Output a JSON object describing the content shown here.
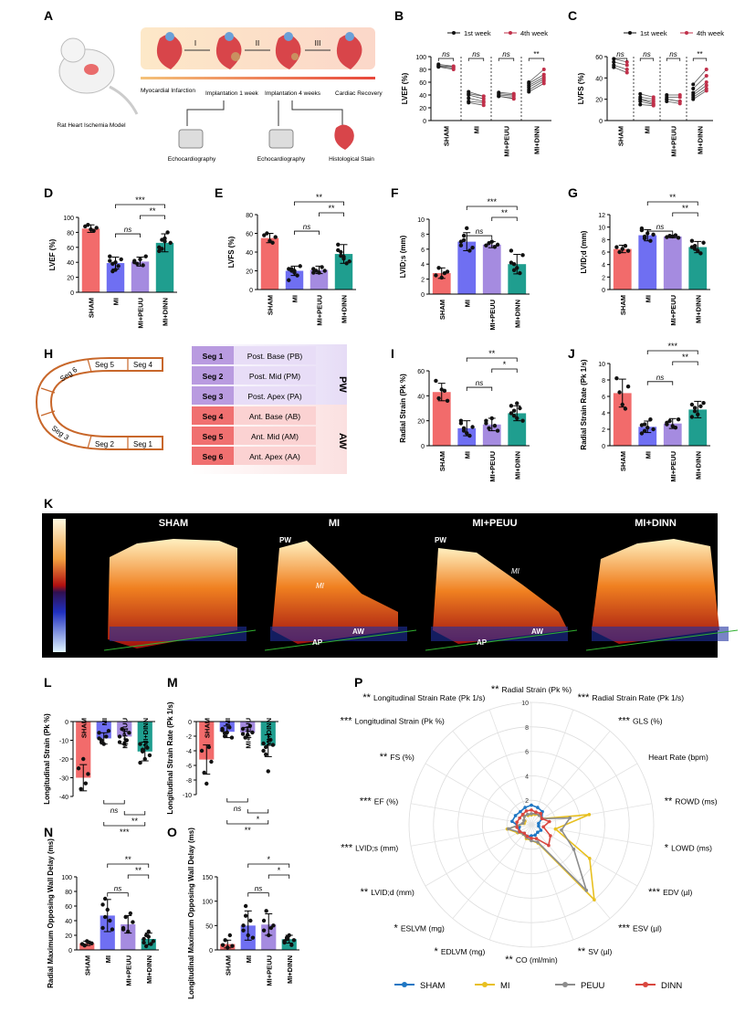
{
  "colors": {
    "sham": "#f26b6b",
    "mi": "#6f6ff2",
    "peuu": "#a58be0",
    "dinn": "#1f9e8f",
    "sham_line": "#1f77c4",
    "mi_line": "#e8c020",
    "peuu_line": "#8c8c8c",
    "dinn_line": "#d9473f"
  },
  "panel_letters": [
    "A",
    "B",
    "C",
    "D",
    "E",
    "F",
    "G",
    "H",
    "I",
    "J",
    "K",
    "L",
    "M",
    "N",
    "O",
    "P"
  ],
  "panel_a": {
    "steps": [
      "I",
      "II",
      "III"
    ],
    "timeline": [
      "Myocardial Infarction",
      "Implantation 1 week",
      "Implantation 4 weeks",
      "Cardiac Recovery"
    ],
    "rat_label": "Rat Heart Ischemia Model",
    "echo1": "Echocardiography",
    "echo2": "Echocardiography",
    "histo": "Histological Stain"
  },
  "chart_data": [
    {
      "id": "B",
      "type": "line",
      "ylabel": "LVEF (%)",
      "ylim": [
        0,
        100
      ],
      "yticks": [
        0,
        20,
        40,
        60,
        80,
        100
      ],
      "categories": [
        "SHAM",
        "MI",
        "MI+PEUU",
        "MI+DINN"
      ],
      "legend": [
        "1st week",
        "4th week"
      ],
      "sig": [
        "ns",
        "ns",
        "ns",
        "**"
      ],
      "series": [
        {
          "name": "1st week",
          "values": [
            [
              88,
              86,
              84,
              85
            ],
            [
              42,
              40,
              35,
              30,
              28,
              45
            ],
            [
              42,
              38,
              40,
              44,
              38
            ],
            [
              58,
              55,
              52,
              48,
              45,
              60
            ]
          ]
        },
        {
          "name": "4th week",
          "values": [
            [
              85,
              84,
              80,
              82
            ],
            [
              38,
              34,
              30,
              28,
              24,
              38
            ],
            [
              40,
              34,
              38,
              42,
              35
            ],
            [
              72,
              68,
              65,
              62,
              58,
              80
            ]
          ]
        }
      ]
    },
    {
      "id": "C",
      "type": "line",
      "ylabel": "LVFS (%)",
      "ylim": [
        0,
        60
      ],
      "yticks": [
        0,
        20,
        40,
        60
      ],
      "categories": [
        "SHAM",
        "MI",
        "MI+PEUU",
        "MI+DINN"
      ],
      "legend": [
        "1st week",
        "4th week"
      ],
      "sig": [
        "ns",
        "ns",
        "ns",
        "**"
      ],
      "series": [
        {
          "name": "1st week",
          "values": [
            [
              58,
              55,
              52,
              50
            ],
            [
              22,
              20,
              18,
              15,
              25,
              20
            ],
            [
              22,
              20,
              18,
              24,
              20
            ],
            [
              30,
              26,
              24,
              20,
              22,
              34
            ]
          ]
        },
        {
          "name": "4th week",
          "values": [
            [
              55,
              52,
              48,
              45
            ],
            [
              20,
              18,
              15,
              14,
              22,
              16
            ],
            [
              22,
              18,
              16,
              24,
              18
            ],
            [
              42,
              36,
              33,
              28,
              30,
              48
            ]
          ]
        }
      ]
    },
    {
      "id": "D",
      "type": "bar",
      "ylabel": "LVEF (%)",
      "ylim": [
        0,
        100
      ],
      "yticks": [
        0,
        20,
        40,
        60,
        80,
        100
      ],
      "categories": [
        "SHAM",
        "MI",
        "MI+PEUU",
        "MI+DINN"
      ],
      "values": [
        85,
        39,
        41,
        66
      ],
      "errors": [
        5,
        8,
        6,
        12
      ],
      "points": [
        [
          88,
          90,
          84,
          82,
          86
        ],
        [
          42,
          38,
          30,
          35,
          44,
          48,
          28,
          40
        ],
        [
          40,
          38,
          44,
          36,
          48,
          42
        ],
        [
          60,
          58,
          72,
          80,
          66,
          55,
          70,
          68
        ]
      ],
      "sig": [
        {
          "a": 1,
          "b": 3,
          "t": "***"
        },
        {
          "a": 2,
          "b": 3,
          "t": "**"
        },
        {
          "a": 1,
          "b": 2,
          "t": "ns"
        }
      ]
    },
    {
      "id": "E",
      "type": "bar",
      "ylabel": "LVFS (%)",
      "ylim": [
        0,
        80
      ],
      "yticks": [
        0,
        20,
        40,
        60,
        80
      ],
      "categories": [
        "SHAM",
        "MI",
        "MI+PEUU",
        "MI+DINN"
      ],
      "values": [
        55,
        20,
        21,
        38
      ],
      "errors": [
        5,
        5,
        4,
        10
      ],
      "points": [
        [
          58,
          60,
          52,
          50,
          56
        ],
        [
          22,
          20,
          18,
          15,
          25,
          10,
          22,
          20
        ],
        [
          22,
          20,
          18,
          24,
          20,
          18
        ],
        [
          42,
          36,
          33,
          28,
          30,
          48,
          40,
          35
        ]
      ],
      "sig": [
        {
          "a": 1,
          "b": 3,
          "t": "**"
        },
        {
          "a": 2,
          "b": 3,
          "t": "**"
        },
        {
          "a": 1,
          "b": 2,
          "t": "ns"
        }
      ]
    },
    {
      "id": "F",
      "type": "bar",
      "ylabel": "LVID;s (mm)",
      "ylim": [
        0,
        10
      ],
      "yticks": [
        0,
        2,
        4,
        6,
        8,
        10
      ],
      "categories": [
        "SHAM",
        "MI",
        "MI+PEUU",
        "MI+DINN"
      ],
      "values": [
        2.8,
        7.0,
        6.6,
        4.0
      ],
      "errors": [
        0.7,
        1.2,
        0.4,
        1.3
      ],
      "points": [
        [
          2.5,
          3.5,
          2.2,
          2.8,
          3.0
        ],
        [
          6.5,
          7.8,
          8.8,
          5.8,
          6.2,
          7.0,
          7.2
        ],
        [
          6.5,
          6.8,
          7.0,
          6.3,
          6.6
        ],
        [
          5.8,
          4.0,
          3.5,
          2.8,
          5.2,
          4.2,
          3.2
        ]
      ],
      "sig": [
        {
          "a": 1,
          "b": 3,
          "t": "***"
        },
        {
          "a": 2,
          "b": 3,
          "t": "**"
        },
        {
          "a": 1,
          "b": 2,
          "t": "ns"
        }
      ]
    },
    {
      "id": "G",
      "type": "bar",
      "ylabel": "LVID;d (mm)",
      "ylim": [
        0,
        12
      ],
      "yticks": [
        0,
        2,
        4,
        6,
        8,
        10,
        12
      ],
      "categories": [
        "SHAM",
        "MI",
        "MI+PEUU",
        "MI+DINN"
      ],
      "values": [
        6.5,
        8.7,
        8.5,
        6.8
      ],
      "errors": [
        0.6,
        0.9,
        0.2,
        0.9
      ],
      "points": [
        [
          6.8,
          6.0,
          6.5,
          7.0,
          6.2
        ],
        [
          9.5,
          8.2,
          9.0,
          7.8,
          8.8,
          9.8,
          8.5
        ],
        [
          8.4,
          8.6,
          8.5,
          8.7,
          8.3
        ],
        [
          7.8,
          7.0,
          6.2,
          5.8,
          7.5,
          6.8,
          6.5
        ]
      ],
      "sig": [
        {
          "a": 1,
          "b": 3,
          "t": "**"
        },
        {
          "a": 2,
          "b": 3,
          "t": "**"
        },
        {
          "a": 1,
          "b": 2,
          "t": "ns"
        }
      ]
    },
    {
      "id": "I",
      "type": "bar",
      "ylabel": "Radial Strain (Pk %)",
      "ylim": [
        0,
        60
      ],
      "yticks": [
        0,
        20,
        40,
        60
      ],
      "categories": [
        "SHAM",
        "MI",
        "MI+PEUU",
        "MI+DINN"
      ],
      "values": [
        43,
        14,
        17,
        26
      ],
      "errors": [
        7,
        6,
        5,
        6
      ],
      "points": [
        [
          52,
          38,
          45,
          44,
          36
        ],
        [
          20,
          12,
          10,
          8,
          15,
          18,
          14
        ],
        [
          18,
          14,
          22,
          16,
          12,
          20
        ],
        [
          32,
          28,
          22,
          30,
          20,
          26,
          24,
          34
        ]
      ],
      "sig": [
        {
          "a": 1,
          "b": 3,
          "t": "**"
        },
        {
          "a": 2,
          "b": 3,
          "t": "*"
        },
        {
          "a": 1,
          "b": 2,
          "t": "ns"
        }
      ]
    },
    {
      "id": "J",
      "type": "bar",
      "ylabel": "Radial Strain Rate (Pk 1/s)",
      "ylim": [
        0,
        10
      ],
      "yticks": [
        0,
        2,
        4,
        6,
        8,
        10
      ],
      "categories": [
        "SHAM",
        "MI",
        "MI+PEUU",
        "MI+DINN"
      ],
      "values": [
        6.4,
        2.3,
        2.7,
        4.4
      ],
      "errors": [
        1.7,
        0.7,
        0.6,
        1.0
      ],
      "points": [
        [
          8.2,
          6.5,
          5.0,
          4.5,
          7.2
        ],
        [
          2.5,
          1.8,
          2.2,
          3.2,
          2.0,
          1.5,
          2.6
        ],
        [
          2.8,
          3.0,
          2.4,
          2.2,
          3.2,
          2.6
        ],
        [
          5.0,
          4.2,
          3.8,
          4.8,
          5.2,
          3.5,
          4.6
        ]
      ],
      "sig": [
        {
          "a": 1,
          "b": 3,
          "t": "***"
        },
        {
          "a": 2,
          "b": 3,
          "t": "**"
        },
        {
          "a": 1,
          "b": 2,
          "t": "ns"
        }
      ]
    },
    {
      "id": "L",
      "type": "bar",
      "ylabel": "Longitudinal Strain (Pk %)",
      "ylim": [
        -40,
        0
      ],
      "yticks": [
        0,
        -10,
        -20,
        -30,
        -40
      ],
      "categories": [
        "SHAM",
        "MI",
        "MI+PEUU",
        "MI+DINN"
      ],
      "values": [
        -30,
        -9,
        -8,
        -16
      ],
      "errors": [
        7,
        3,
        4,
        5
      ],
      "points": [
        [
          -25,
          -36,
          -20,
          -33,
          -28
        ],
        [
          -6,
          -10,
          -12,
          -8,
          -5,
          -9,
          -11
        ],
        [
          -8,
          -4,
          -12,
          -10,
          -6,
          -11
        ],
        [
          -12,
          -16,
          -20,
          -14,
          -18,
          -22,
          -15
        ]
      ],
      "sig": [
        {
          "a": 1,
          "b": 3,
          "t": "***"
        },
        {
          "a": 2,
          "b": 3,
          "t": "**"
        },
        {
          "a": 1,
          "b": 2,
          "t": "ns"
        }
      ]
    },
    {
      "id": "M",
      "type": "bar",
      "ylabel": "Longitudinal Strain Rate (Pk 1/s)",
      "ylim": [
        -10,
        0
      ],
      "yticks": [
        0,
        -2,
        -4,
        -6,
        -8,
        -10
      ],
      "categories": [
        "SHAM",
        "MI",
        "MI+PEUU",
        "MI+DINN"
      ],
      "values": [
        -5.2,
        -1.4,
        -1.5,
        -3.3
      ],
      "errors": [
        2,
        0.8,
        0.7,
        1.5
      ],
      "points": [
        [
          -4,
          -7,
          -8.5,
          -3.5,
          -5.5
        ],
        [
          -1,
          -2,
          -1.5,
          -0.8,
          -2.2,
          -1.2,
          -1.6
        ],
        [
          -1,
          -2.2,
          -1.8,
          -0.6,
          -1.5,
          -1.7
        ],
        [
          -3,
          -4.5,
          -6.8,
          -2.5,
          -3.2,
          -4,
          -3.5
        ]
      ],
      "sig": [
        {
          "a": 1,
          "b": 3,
          "t": "**"
        },
        {
          "a": 2,
          "b": 3,
          "t": "*"
        },
        {
          "a": 1,
          "b": 2,
          "t": "ns"
        }
      ]
    },
    {
      "id": "N",
      "type": "bar",
      "ylabel": "Radial Maximum Opposing Wall Delay (ms)",
      "ylim": [
        0,
        100
      ],
      "yticks": [
        0,
        20,
        40,
        60,
        80,
        100
      ],
      "categories": [
        "SHAM",
        "MI",
        "MI+PEUU",
        "MI+DINN"
      ],
      "values": [
        9,
        47,
        35,
        15
      ],
      "errors": [
        3,
        22,
        12,
        8
      ],
      "points": [
        [
          8,
          6,
          12,
          10,
          9
        ],
        [
          30,
          70,
          55,
          40,
          28,
          62,
          45
        ],
        [
          30,
          45,
          25,
          50,
          38,
          28
        ],
        [
          10,
          20,
          25,
          8,
          12,
          15,
          5,
          18
        ]
      ],
      "sig": [
        {
          "a": 1,
          "b": 3,
          "t": "**"
        },
        {
          "a": 2,
          "b": 3,
          "t": "**"
        },
        {
          "a": 1,
          "b": 2,
          "t": "ns"
        }
      ]
    },
    {
      "id": "O",
      "type": "bar",
      "ylabel": "Longitudinal Maximum Opposing Wall Delay (ms)",
      "ylim": [
        0,
        150
      ],
      "yticks": [
        0,
        50,
        100,
        150
      ],
      "categories": [
        "SHAM",
        "MI",
        "MI+PEUU",
        "MI+DINN"
      ],
      "values": [
        12,
        50,
        52,
        22
      ],
      "errors": [
        8,
        30,
        22,
        8
      ],
      "points": [
        [
          10,
          20,
          5,
          30,
          8
        ],
        [
          40,
          90,
          30,
          60,
          25,
          50,
          70
        ],
        [
          60,
          80,
          30,
          45,
          50,
          40
        ],
        [
          15,
          25,
          30,
          10,
          20,
          18,
          22
        ]
      ],
      "sig": [
        {
          "a": 1,
          "b": 3,
          "t": "*"
        },
        {
          "a": 2,
          "b": 3,
          "t": "*"
        },
        {
          "a": 1,
          "b": 2,
          "t": "ns"
        }
      ]
    }
  ],
  "panel_h": {
    "segments_left": [
      "Seg 6",
      "Seg 5",
      "Seg 4",
      "Seg 3",
      "Seg 2",
      "Seg 1"
    ],
    "rows": [
      [
        "Seg 1",
        "Post. Base (PB)"
      ],
      [
        "Seg 2",
        "Post. Mid (PM)"
      ],
      [
        "Seg 3",
        "Post. Apex (PA)"
      ],
      [
        "Seg 4",
        "Ant. Base (AB)"
      ],
      [
        "Seg 5",
        "Ant. Mid (AM)"
      ],
      [
        "Seg 6",
        "Ant. Apex (AA)"
      ]
    ],
    "pw": "PW",
    "aw": "AW"
  },
  "panel_k": {
    "titles": [
      "SHAM",
      "MI",
      "MI+PEUU",
      "MI+DINN"
    ],
    "labels": {
      "pw": "PW",
      "mi": "MI",
      "aw": "AW",
      "ap": "AP"
    }
  },
  "radar": {
    "type": "radar",
    "rmax": 10,
    "rticks": [
      2,
      4,
      6,
      8,
      10
    ],
    "axes": [
      "Radial Strain (Pk %)",
      "Radial Strain Rate (Pk 1/s)",
      "GLS (%)",
      "Heart Rate (bpm)",
      "ROWD (ms)",
      "LOWD (ms)",
      "EDV (µl)",
      "ESV (µl)",
      "SV (µl)",
      "CO (ml/min)",
      "EDLVM (mg)",
      "ESLVM (mg)",
      "LVID;d (mm)",
      "LVID;s (mm)",
      "EF (%)",
      "FS (%)",
      "Longitudinal Strain (Pk %)",
      "Longitudinal Strain Rate (Pk 1/s)"
    ],
    "sig": [
      "**",
      "***",
      "***",
      "",
      "**",
      "*",
      "***",
      "***",
      "**",
      "**",
      "*",
      "*",
      "**",
      "***",
      "***",
      "**",
      "***",
      "**"
    ],
    "series": [
      {
        "name": "SHAM",
        "values": [
          1.6,
          1.5,
          1.4,
          1.0,
          0.6,
          0.6,
          0.9,
          0.8,
          0.9,
          0.9,
          1.0,
          0.9,
          1.1,
          1.0,
          1.6,
          1.5,
          1.4,
          1.5
        ]
      },
      {
        "name": "MI",
        "values": [
          0.8,
          0.9,
          1.0,
          1.0,
          4.8,
          2.0,
          5.5,
          8.0,
          1.6,
          1.3,
          1.2,
          1.0,
          1.3,
          2.0,
          0.6,
          0.6,
          1.0,
          0.8
        ]
      },
      {
        "name": "PEUU",
        "values": [
          0.9,
          1.0,
          1.0,
          1.0,
          3.2,
          2.5,
          4.0,
          7.0,
          1.5,
          1.3,
          1.1,
          1.0,
          1.2,
          1.9,
          0.7,
          0.7,
          0.9,
          0.9
        ]
      },
      {
        "name": "DINN",
        "values": [
          1.2,
          1.1,
          1.2,
          1.0,
          1.5,
          1.0,
          1.8,
          2.2,
          1.2,
          1.1,
          1.0,
          0.9,
          1.1,
          1.2,
          1.2,
          1.1,
          1.1,
          1.2
        ]
      }
    ]
  }
}
